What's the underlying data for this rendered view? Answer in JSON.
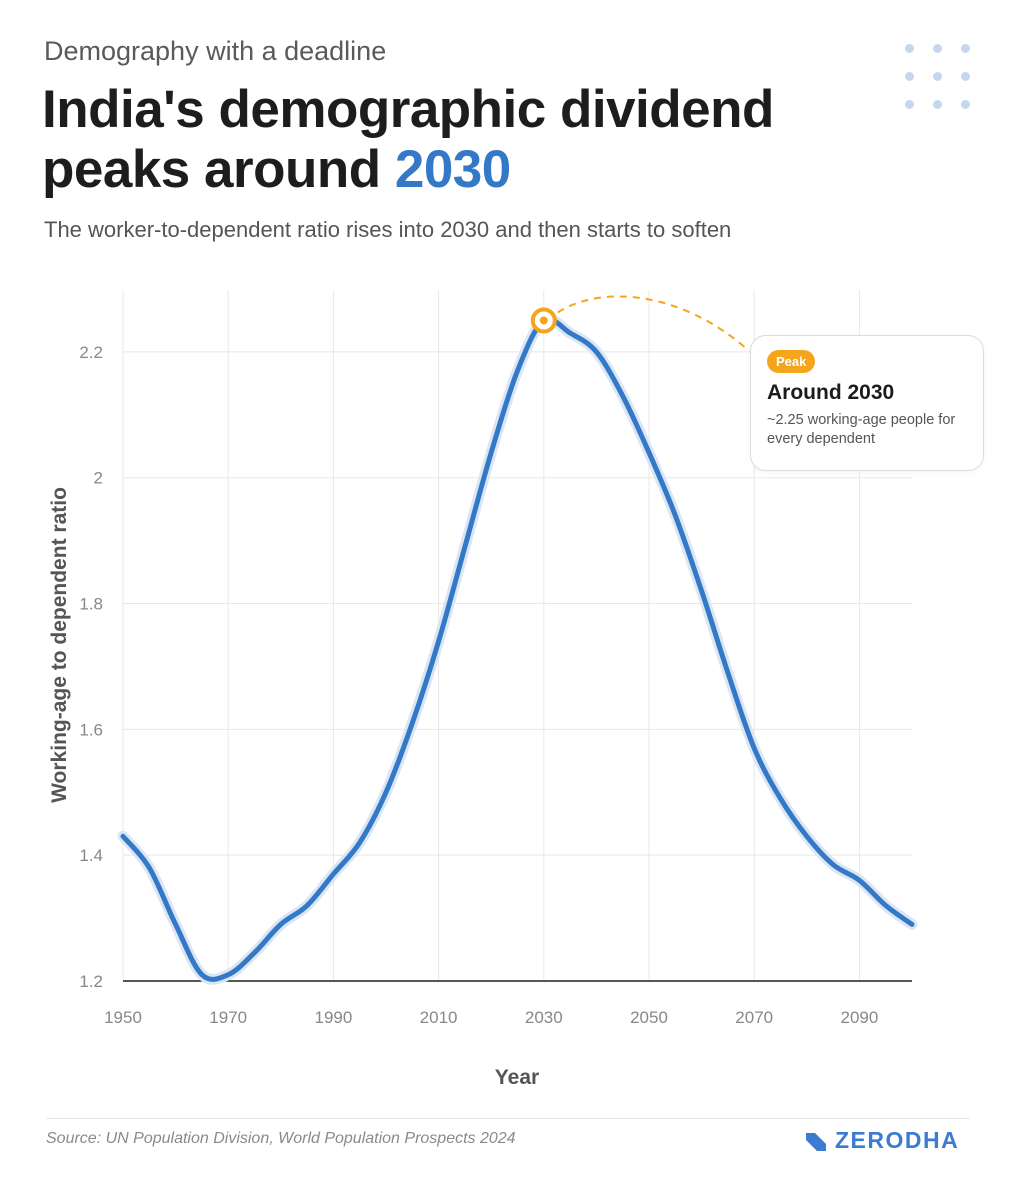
{
  "header": {
    "kicker": "Demography with a deadline",
    "title_line1": "India's demographic dividend",
    "title_line2_prefix": "peaks around ",
    "title_highlight": "2030",
    "subtitle": "The worker-to-dependent ratio rises into 2030 and then starts to soften"
  },
  "chart_data": {
    "type": "line",
    "title": "India's demographic dividend peaks around 2030",
    "xlabel": "Year",
    "ylabel": "Working-age to dependent ratio",
    "xlim": [
      1950,
      2100
    ],
    "ylim": [
      1.2,
      2.3
    ],
    "x_ticks": [
      1950,
      1970,
      1990,
      2010,
      2030,
      2050,
      2070,
      2090
    ],
    "y_ticks": [
      1.2,
      1.4,
      1.6,
      1.8,
      2,
      2.2
    ],
    "grid": true,
    "series": [
      {
        "name": "Working-age to dependent ratio",
        "color": "#3478c8",
        "x": [
          1950,
          1955,
          1960,
          1965,
          1970,
          1975,
          1980,
          1985,
          1990,
          1995,
          2000,
          2005,
          2010,
          2015,
          2020,
          2025,
          2030,
          2035,
          2040,
          2045,
          2050,
          2055,
          2060,
          2065,
          2070,
          2075,
          2080,
          2085,
          2090,
          2095,
          2100
        ],
        "y": [
          1.43,
          1.38,
          1.29,
          1.21,
          1.21,
          1.245,
          1.29,
          1.32,
          1.37,
          1.42,
          1.5,
          1.61,
          1.74,
          1.89,
          2.04,
          2.17,
          2.25,
          2.23,
          2.2,
          2.13,
          2.04,
          1.94,
          1.82,
          1.69,
          1.57,
          1.49,
          1.43,
          1.385,
          1.36,
          1.32,
          1.29
        ]
      }
    ],
    "annotation": {
      "x": 2030,
      "y": 2.25,
      "badge": "Peak",
      "title": "Around 2030",
      "text": "~2.25 working-age people for every dependent"
    },
    "colors": {
      "line": "#3478c8",
      "marker": "#f5a51c",
      "grid": "#e8e8e8",
      "axis": "#1f1f1f",
      "tick_label": "#888888"
    }
  },
  "footer": {
    "source": "Source: UN Population Division, World Population Prospects 2024",
    "brand": "ZERODHA",
    "brand_color": "#3b7bd0"
  }
}
